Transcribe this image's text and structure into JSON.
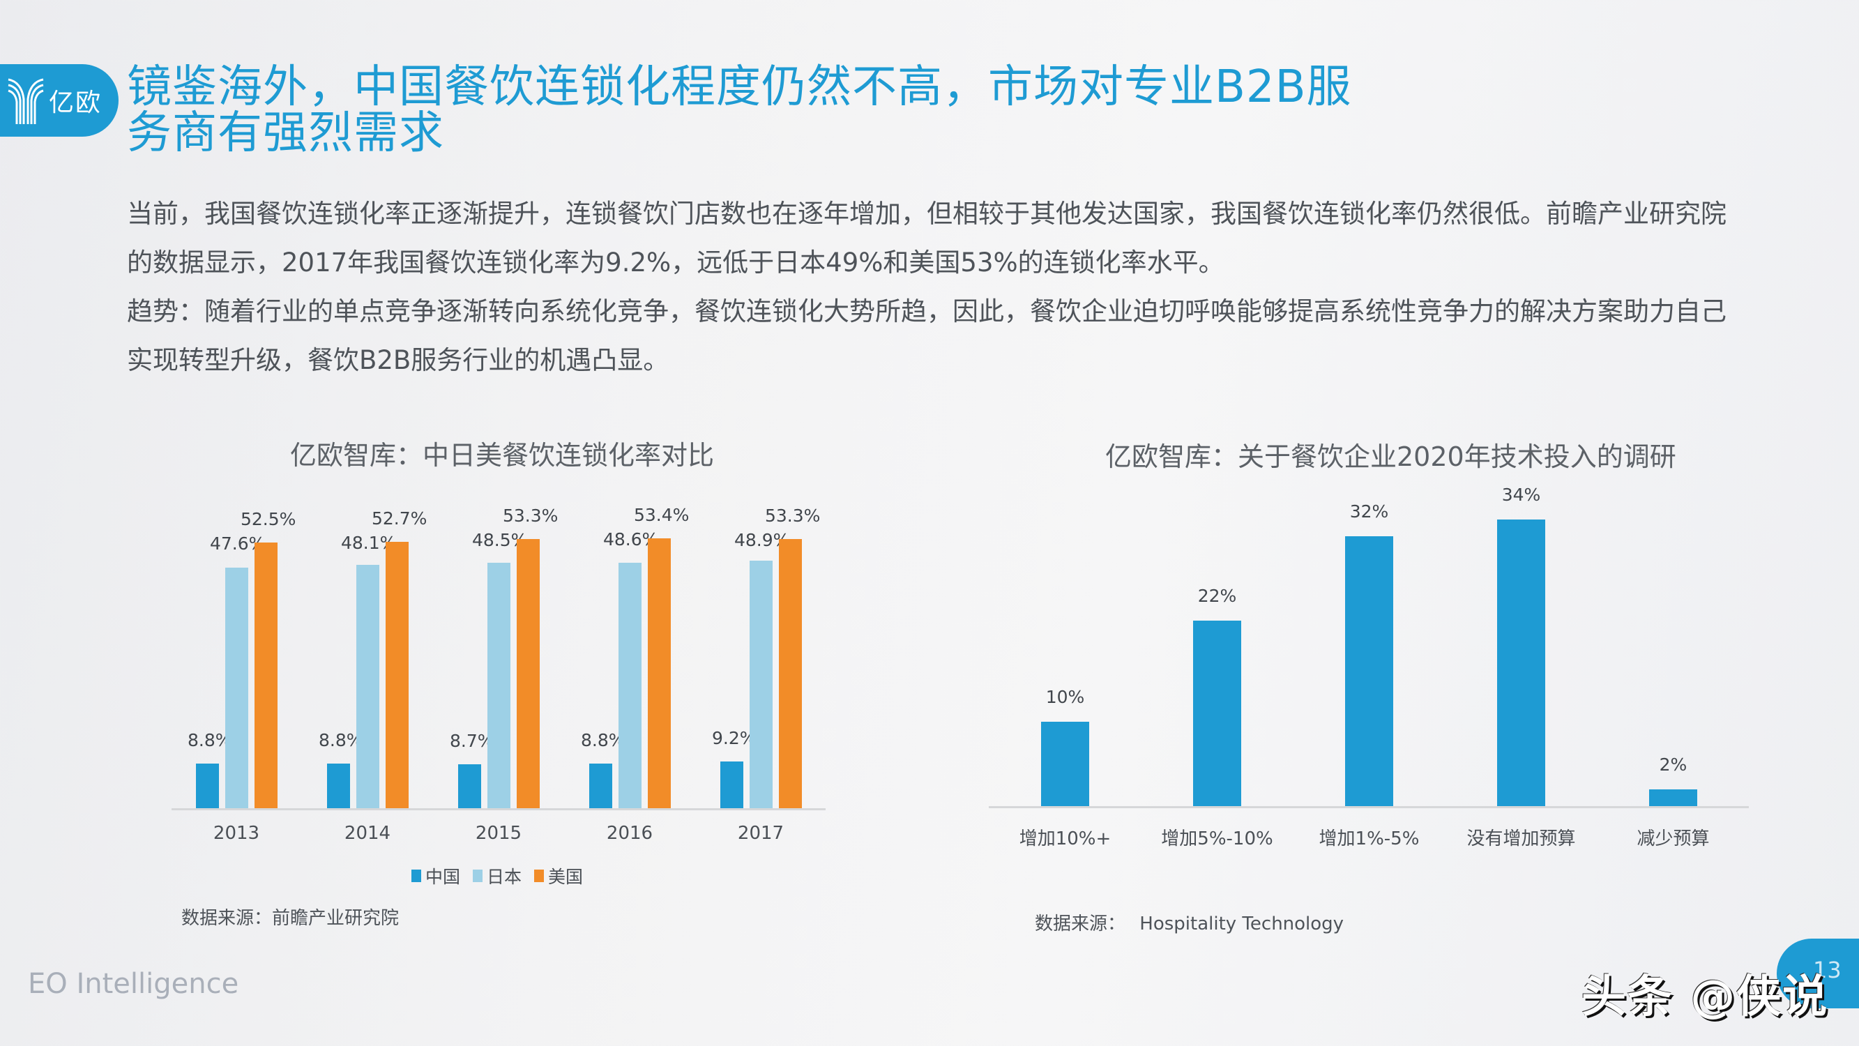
{
  "header": {
    "logo_text": "亿欧",
    "title_line1": "镜鉴海外，中国餐饮连锁化程度仍然不高，市场对专业B2B服",
    "title_line2": "务商有强烈需求"
  },
  "body": {
    "paragraphs": [
      "当前，我国餐饮连锁化率正逐渐提升，连锁餐饮门店数也在逐年增加，但相较于其他发达国家，我国餐饮连锁化率仍然很低。前瞻产业研究院的数据显示，2017年我国餐饮连锁化率为9.2%，远低于日本49%和美国53%的连锁化率水平。",
      "趋势：随着行业的单点竞争逐渐转向系统化竞争，餐饮连锁化大势所趋，因此，餐饮企业迫切呼唤能够提高系统性竞争力的解决方案助力自己实现转型升级，餐饮B2B服务行业的机遇凸显。"
    ]
  },
  "colors": {
    "brand": "#1e9bd3",
    "china": "#1e9bd3",
    "japan": "#9dd0e6",
    "usa": "#f28c28"
  },
  "chart_data": [
    {
      "type": "bar",
      "title": "亿欧智库：中日美餐饮连锁化率对比",
      "categories": [
        "2013",
        "2014",
        "2015",
        "2016",
        "2017"
      ],
      "series": [
        {
          "name": "中国",
          "values": [
            8.8,
            8.8,
            8.7,
            8.8,
            9.2
          ],
          "labels": [
            "8.8%",
            "8.8%",
            "8.7%",
            "8.8%",
            "9.2%"
          ]
        },
        {
          "name": "日本",
          "values": [
            47.6,
            48.1,
            48.5,
            48.6,
            48.9
          ],
          "labels": [
            "47.6%",
            "48.1%",
            "48.5%",
            "48.6%",
            "48.9%"
          ]
        },
        {
          "name": "美国",
          "values": [
            52.5,
            52.7,
            53.3,
            53.4,
            53.3
          ],
          "labels": [
            "52.5%",
            "52.7%",
            "53.3%",
            "53.4%",
            "53.3%"
          ]
        }
      ],
      "xlabel": "",
      "ylabel": "",
      "ylim": [
        0,
        60
      ],
      "grid": false,
      "legend_position": "bottom",
      "source": "数据来源：前瞻产业研究院"
    },
    {
      "type": "bar",
      "title": "亿欧智库：关于餐饮企业2020年技术投入的调研",
      "categories": [
        "增加10%+",
        "增加5%-10%",
        "增加1%-5%",
        "没有增加预算",
        "减少预算"
      ],
      "values": [
        10,
        22,
        32,
        34,
        2
      ],
      "labels": [
        "10%",
        "22%",
        "32%",
        "34%",
        "2%"
      ],
      "xlabel": "",
      "ylabel": "",
      "ylim": [
        0,
        40
      ],
      "grid": false,
      "source_label": "数据来源：",
      "source_value": "Hospitality Technology"
    }
  ],
  "footer": {
    "brand": "EO Intelligence",
    "page_number": "13",
    "watermark": "头条 @侠说"
  }
}
